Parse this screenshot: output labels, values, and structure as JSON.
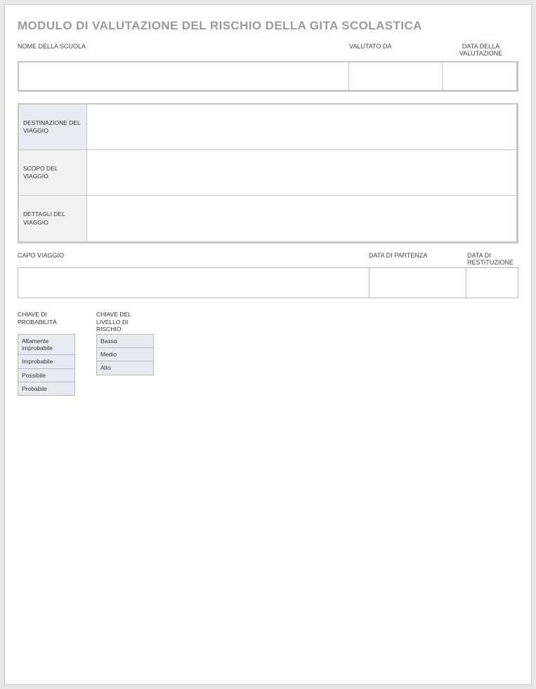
{
  "title": "MODULO DI VALUTAZIONE DEL RISCHIO DELLA GITA SCOLASTICA",
  "header_row": {
    "school_name_label": "NOME DELLA SCUOLA",
    "assessed_by_label": "VALUTATO DA",
    "assessment_date_label": "DATA DELLA VALUTAZIONE",
    "school_name_value": "",
    "assessed_by_value": "",
    "assessment_date_value": ""
  },
  "trip_info": {
    "rows": [
      {
        "label": "DESTINAZIONE DEL VIAGGIO",
        "shade": "shaded",
        "value": ""
      },
      {
        "label": "SCOPO DEL VIAGGIO",
        "shade": "light",
        "value": ""
      },
      {
        "label": "DETTAGLI DEL VIAGGIO",
        "shade": "light",
        "value": ""
      }
    ]
  },
  "leader_row": {
    "leader_label": "CAPO VIAGGIO",
    "departure_label": "DATA DI PARTENZA",
    "return_label": "DATA DI RESTITUZIONE",
    "leader_value": "",
    "departure_value": "",
    "return_value": ""
  },
  "keys": {
    "probability_title": "CHIAVE DI PROBABILITÀ",
    "probability_items": [
      "Altamente improbabile",
      "Improbabile",
      "Possibile",
      "Probabile"
    ],
    "risk_title": "CHIAVE DEL LIVELLO DI RISCHIO",
    "risk_items": [
      "Basso",
      "Medio",
      "Alto"
    ]
  },
  "colors": {
    "page_bg": "#ffffff",
    "outer_bg": "#e8e8e8",
    "title_color": "#9a9a9a",
    "border": "#c7c7c7",
    "border_light": "#b8b8b8",
    "shaded_cell": "#e8ecf2",
    "light_cell": "#f2f2f2",
    "text": "#333333"
  }
}
